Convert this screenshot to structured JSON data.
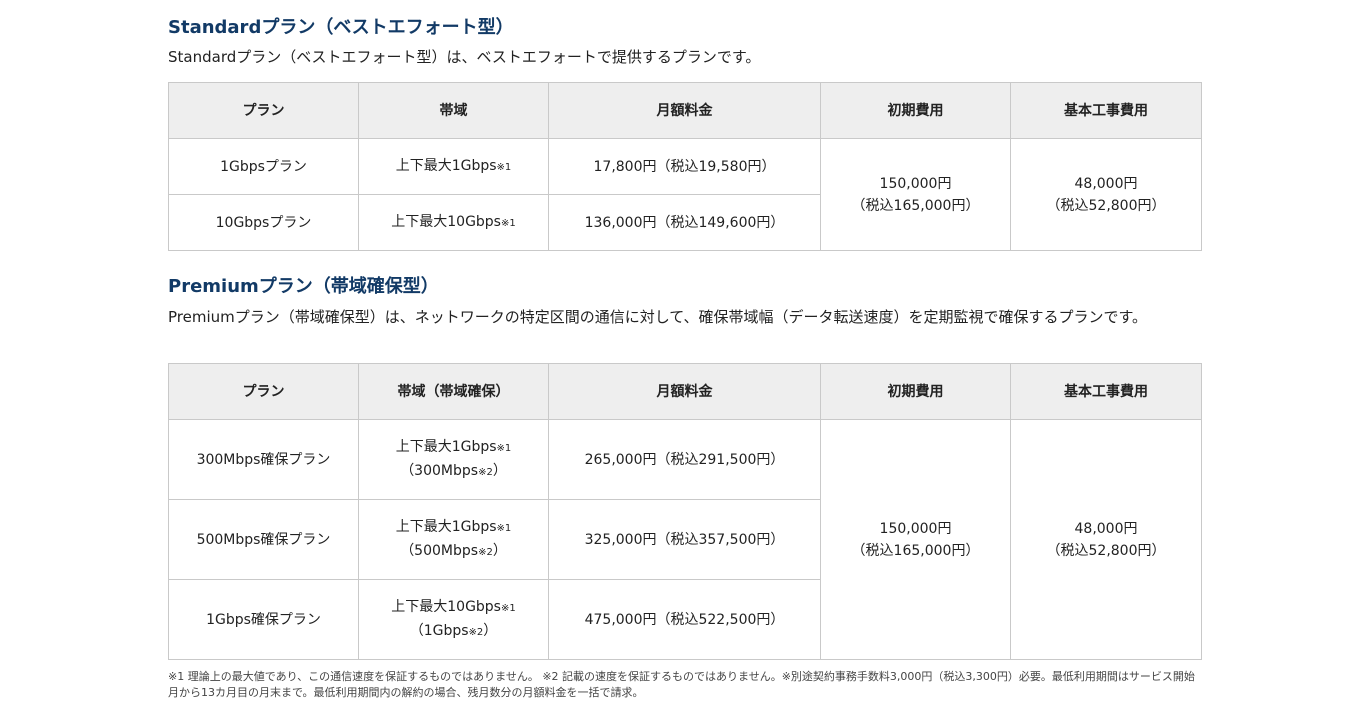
{
  "standard": {
    "title": "Standardプラン（ベストエフォート型）",
    "description": "Standardプラン（ベストエフォート型）は、ベストエフォートで提供するプランです。",
    "headers": [
      "プラン",
      "帯域",
      "月額料金",
      "初期費用",
      "基本工事費用"
    ],
    "rows": [
      {
        "plan": "1Gbpsプラン",
        "band": "上下最大1Gbps",
        "band_note": "※1",
        "monthly": "17,800円（税込19,580円）"
      },
      {
        "plan": "10Gbpsプラン",
        "band": "上下最大10Gbps",
        "band_note": "※1",
        "monthly": "136,000円（税込149,600円）"
      }
    ],
    "initial_fee": {
      "price": "150,000円",
      "tax": "（税込165,000円）"
    },
    "construction_fee": {
      "price": "48,000円",
      "tax": "（税込52,800円）"
    }
  },
  "premium": {
    "title": "Premiumプラン（帯域確保型）",
    "description": "Premiumプラン（帯域確保型）は、ネットワークの特定区間の通信に対して、確保帯域幅（データ転送速度）を定期監視で確保するプランです。",
    "headers": [
      "プラン",
      "帯域（帯域確保）",
      "月額料金",
      "初期費用",
      "基本工事費用"
    ],
    "rows": [
      {
        "plan": "300Mbps確保プラン",
        "band": "上下最大1Gbps",
        "band_note": "※1",
        "guaranteed_pre": "（300Mbps",
        "guaranteed_note": "※2",
        "guaranteed_post": "）",
        "monthly": "265,000円（税込291,500円）"
      },
      {
        "plan": "500Mbps確保プラン",
        "band": "上下最大1Gbps",
        "band_note": "※1",
        "guaranteed_pre": "（500Mbps",
        "guaranteed_note": "※2",
        "guaranteed_post": "）",
        "monthly": "325,000円（税込357,500円）"
      },
      {
        "plan": "1Gbps確保プラン",
        "band": "上下最大10Gbps",
        "band_note": "※1",
        "guaranteed_pre": "（1Gbps",
        "guaranteed_note": "※2",
        "guaranteed_post": "）",
        "monthly": "475,000円（税込522,500円）"
      }
    ],
    "initial_fee": {
      "price": "150,000円",
      "tax": "（税込165,000円）"
    },
    "construction_fee": {
      "price": "48,000円",
      "tax": "（税込52,800円）"
    }
  },
  "footnote": "※1 理論上の最大値であり、この通信速度を保証するものではありません。 ※2 記載の速度を保証するものではありません。※別途契約事務手数料3,000円（税込3,300円）必要。最低利用期間はサービス開始月から13カ月目の月末まで。最低利用期間内の解約の場合、残月数分の月額料金を一括で請求。"
}
